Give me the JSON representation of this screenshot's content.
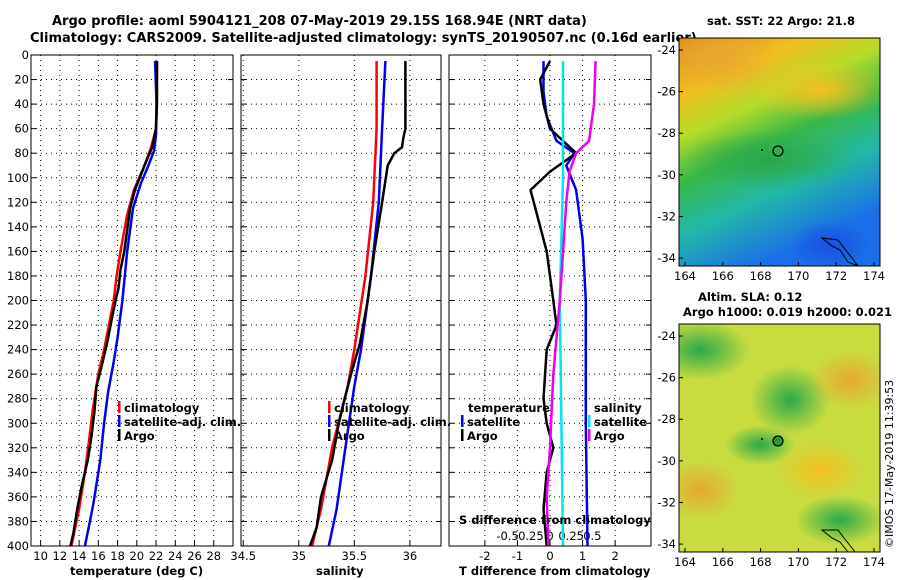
{
  "header": {
    "line1": "Argo profile: aoml 5904121_208 07-May-2019 29.15S 168.94E (NRT data)",
    "line2": "Climatology: CARS2009. Satellite-adjusted climatology: synTS_20190507.nc (0.16d earlier)"
  },
  "depth_ticks": [
    0,
    20,
    40,
    60,
    80,
    100,
    120,
    140,
    160,
    180,
    200,
    220,
    240,
    260,
    280,
    300,
    320,
    340,
    360,
    380,
    400
  ],
  "colors": {
    "climatology": "#ff0000",
    "satellite": "#0000ee",
    "argo": "#000000",
    "cyan": "#00e5ee",
    "magenta": "#ee00ee"
  },
  "chart_data": [
    {
      "type": "line",
      "name": "temperature",
      "xlabel": "temperature (deg C)",
      "xlim": [
        9,
        30
      ],
      "ylim": [
        0,
        400
      ],
      "xticks": [
        10,
        12,
        14,
        16,
        18,
        20,
        22,
        24,
        26,
        28
      ],
      "legend": [
        "climatology",
        "satellite-adj. clim.",
        "Argo"
      ],
      "series": [
        {
          "name": "climatology",
          "color": "#ff0000",
          "points": [
            [
              22.1,
              5
            ],
            [
              22.05,
              40
            ],
            [
              22,
              60
            ],
            [
              21.5,
              75
            ],
            [
              20.8,
              90
            ],
            [
              19.7,
              110
            ],
            [
              19,
              130
            ],
            [
              18.3,
              160
            ],
            [
              17.9,
              180
            ],
            [
              17.6,
              200
            ],
            [
              17.1,
              220
            ],
            [
              16.6,
              240
            ],
            [
              16,
              260
            ],
            [
              15.4,
              290
            ],
            [
              15.1,
              310
            ],
            [
              14.6,
              340
            ],
            [
              14,
              370
            ],
            [
              13.2,
              400
            ]
          ]
        },
        {
          "name": "satellite-adj. clim.",
          "color": "#0000ee",
          "points": [
            [
              21.9,
              5
            ],
            [
              22.05,
              40
            ],
            [
              22,
              65
            ],
            [
              21.8,
              78
            ],
            [
              21.2,
              90
            ],
            [
              20.4,
              105
            ],
            [
              19.6,
              125
            ],
            [
              19,
              160
            ],
            [
              18.5,
              200
            ],
            [
              18,
              230
            ],
            [
              17.6,
              250
            ],
            [
              17,
              275
            ],
            [
              16.6,
              300
            ],
            [
              16.2,
              330
            ],
            [
              15.5,
              365
            ],
            [
              15,
              385
            ],
            [
              14.6,
              400
            ]
          ]
        },
        {
          "name": "Argo",
          "color": "#000000",
          "points": [
            [
              22.1,
              5
            ],
            [
              22.1,
              40
            ],
            [
              22,
              60
            ],
            [
              21.6,
              75
            ],
            [
              20.8,
              90
            ],
            [
              19.8,
              110
            ],
            [
              19.3,
              125
            ],
            [
              18.7,
              160
            ],
            [
              18.3,
              175
            ],
            [
              18.1,
              190
            ],
            [
              17.8,
              200
            ],
            [
              17.4,
              215
            ],
            [
              16.9,
              235
            ],
            [
              16.3,
              255
            ],
            [
              15.8,
              270
            ],
            [
              15.6,
              290
            ],
            [
              15.3,
              310
            ],
            [
              14.9,
              330
            ],
            [
              14.3,
              350
            ],
            [
              13.8,
              370
            ],
            [
              13.4,
              390
            ],
            [
              13.1,
              400
            ]
          ]
        }
      ]
    },
    {
      "type": "line",
      "name": "salinity",
      "xlabel": "salinity",
      "xlim": [
        34.48,
        36.28
      ],
      "ylim": [
        0,
        400
      ],
      "xticks": [
        34.5,
        35,
        35.5,
        36
      ],
      "xticklabels": [
        "34.5",
        "35",
        "35.5",
        "36"
      ],
      "legend": [
        "climatology",
        "satellite-adj. clim.",
        "Argo"
      ],
      "series": [
        {
          "name": "climatology",
          "color": "#ff0000",
          "points": [
            [
              35.7,
              5
            ],
            [
              35.7,
              60
            ],
            [
              35.67,
              120
            ],
            [
              35.6,
              180
            ],
            [
              35.5,
              240
            ],
            [
              35.44,
              270
            ],
            [
              35.3,
              320
            ],
            [
              35.2,
              370
            ],
            [
              35.12,
              400
            ]
          ]
        },
        {
          "name": "satellite-adj. clim.",
          "color": "#0000ee",
          "points": [
            [
              35.78,
              5
            ],
            [
              35.75,
              60
            ],
            [
              35.72,
              120
            ],
            [
              35.65,
              180
            ],
            [
              35.56,
              240
            ],
            [
              35.5,
              270
            ],
            [
              35.42,
              320
            ],
            [
              35.34,
              370
            ],
            [
              35.27,
              400
            ]
          ]
        },
        {
          "name": "Argo",
          "color": "#000000",
          "points": [
            [
              35.96,
              5
            ],
            [
              35.96,
              60
            ],
            [
              35.94,
              68
            ],
            [
              35.93,
              75
            ],
            [
              35.86,
              80
            ],
            [
              35.8,
              90
            ],
            [
              35.75,
              120
            ],
            [
              35.68,
              160
            ],
            [
              35.62,
              200
            ],
            [
              35.55,
              235
            ],
            [
              35.47,
              260
            ],
            [
              35.4,
              285
            ],
            [
              35.36,
              300
            ],
            [
              35.3,
              330
            ],
            [
              35.2,
              360
            ],
            [
              35.16,
              385
            ],
            [
              35.1,
              400
            ]
          ]
        }
      ]
    },
    {
      "type": "line",
      "name": "difference",
      "xlabel": "T difference from climatology",
      "xlabel_top": "S difference from climatology",
      "xlim": [
        -3.1,
        3.1
      ],
      "ylim": [
        0,
        400
      ],
      "xticks": [
        -2,
        -1,
        0,
        1,
        2
      ],
      "xticklabels": [
        "-2",
        "-1",
        "0",
        "1",
        "2"
      ],
      "sticks": [
        -1.3,
        -0.65,
        0,
        0.65,
        1.3
      ],
      "sticklabels": [
        "-0.5",
        "-0.25",
        "0",
        "0.25",
        "0.5"
      ],
      "legend_temperature_title": "temperature",
      "legend_salinity_title": "salinity",
      "legend_temperature": [
        "satellite",
        "Argo"
      ],
      "legend_salinity": [
        "satellite",
        "Argo"
      ],
      "series": [
        {
          "name": "T satellite",
          "color": "#0000ee",
          "points": [
            [
              -0.2,
              5
            ],
            [
              -0.2,
              30
            ],
            [
              -0.1,
              50
            ],
            [
              0.2,
              70
            ],
            [
              0.75,
              80
            ],
            [
              0.5,
              90
            ],
            [
              0.8,
              110
            ],
            [
              1,
              150
            ],
            [
              1.1,
              200
            ],
            [
              1.1,
              300
            ],
            [
              1.15,
              400
            ]
          ]
        },
        {
          "name": "T Argo",
          "color": "#000000",
          "points": [
            [
              0,
              5
            ],
            [
              -0.3,
              20
            ],
            [
              -0.2,
              40
            ],
            [
              0,
              60
            ],
            [
              0.4,
              70
            ],
            [
              0.8,
              80
            ],
            [
              0,
              95
            ],
            [
              -0.6,
              110
            ],
            [
              -0.4,
              130
            ],
            [
              -0.1,
              160
            ],
            [
              0.1,
              200
            ],
            [
              0.2,
              220
            ],
            [
              -0.1,
              240
            ],
            [
              -0.2,
              280
            ],
            [
              -0.1,
              300
            ],
            [
              0.1,
              320
            ],
            [
              -0.1,
              340
            ],
            [
              -0.2,
              370
            ],
            [
              -0.1,
              400
            ]
          ]
        },
        {
          "name": "S satellite",
          "color": "#00e5ee",
          "points": [
            [
              0.4,
              5
            ],
            [
              0.4,
              100
            ],
            [
              0.3,
              200
            ],
            [
              0.35,
              300
            ],
            [
              0.4,
              400
            ]
          ]
        },
        {
          "name": "S Argo",
          "color": "#ee00ee",
          "points": [
            [
              1.4,
              5
            ],
            [
              1.35,
              40
            ],
            [
              1.2,
              70
            ],
            [
              0.8,
              80
            ],
            [
              0.6,
              95
            ],
            [
              0.5,
              120
            ],
            [
              0.3,
              200
            ],
            [
              0.1,
              260
            ],
            [
              0.0,
              320
            ],
            [
              -0.1,
              360
            ],
            [
              -0.05,
              400
            ]
          ]
        }
      ]
    }
  ],
  "maps": {
    "top": {
      "title": "sat. SST: 22 Argo: 21.8",
      "xticks": [
        "164",
        "166",
        "168",
        "170",
        "172",
        "174"
      ],
      "yticks": [
        "-24",
        "-26",
        "-28",
        "-30",
        "-32",
        "-34"
      ]
    },
    "bottom": {
      "title1": "Altim. SLA: 0.12",
      "title2": "Argo h1000: 0.019 h2000: 0.021",
      "xticks": [
        "164",
        "166",
        "168",
        "170",
        "172",
        "174"
      ],
      "yticks": [
        "-24",
        "-26",
        "-28",
        "-30",
        "-32",
        "-34"
      ]
    }
  },
  "credit": "©IMOS 17-May-2019 11:39:53"
}
